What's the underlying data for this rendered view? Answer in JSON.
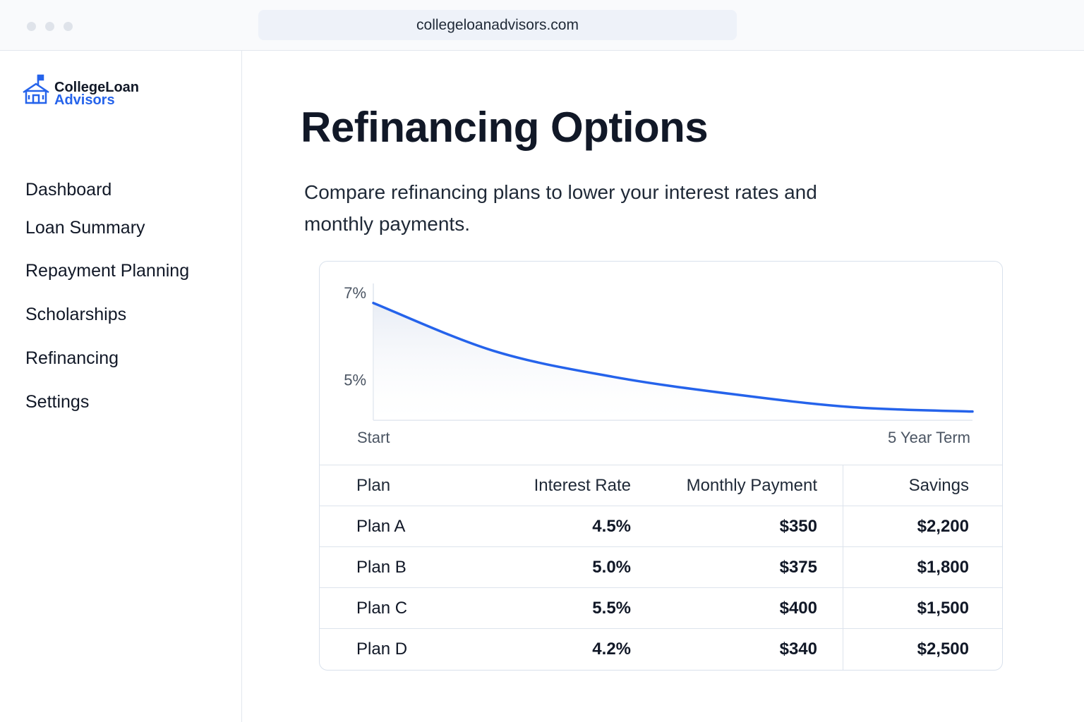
{
  "browser": {
    "url": "collegeloanadvisors.com"
  },
  "sidebar": {
    "logo": {
      "line1": "CollegeLoan",
      "line2": "Advisors"
    },
    "nav": [
      "Dashboard",
      "Loan Summary",
      "Repayment Planning",
      "Scholarships",
      "Refinancing",
      "Settings"
    ]
  },
  "header": {
    "title": "Refinancing Options",
    "subtitle": "Compare refinancing plans to lower your interest rates and monthly payments."
  },
  "chart_data": {
    "type": "line",
    "x": [
      0,
      1,
      2,
      3,
      4,
      5
    ],
    "values": [
      6.8,
      5.7,
      5.1,
      4.7,
      4.4,
      4.3
    ],
    "color": "#2563eb",
    "xlim": [
      0,
      5
    ],
    "xticks": [
      {
        "value": 0,
        "label": "Start"
      },
      {
        "value": 5,
        "label": "5 Year Term"
      }
    ],
    "ylim": [
      4.1,
      7.25
    ],
    "yticks": [
      {
        "value": 5,
        "label": "5%"
      },
      {
        "value": 7,
        "label": "7%"
      }
    ],
    "grid": false
  },
  "table": {
    "columns": [
      "Plan",
      "Interest Rate",
      "Monthly Payment",
      "Savings"
    ],
    "rows": [
      [
        "Plan A",
        "4.5%",
        "$350",
        "$2,200"
      ],
      [
        "Plan B",
        "5.0%",
        "$375",
        "$1,800"
      ],
      [
        "Plan C",
        "5.5%",
        "$400",
        "$1,500"
      ],
      [
        "Plan D",
        "4.2%",
        "$340",
        "$2,500"
      ]
    ]
  }
}
